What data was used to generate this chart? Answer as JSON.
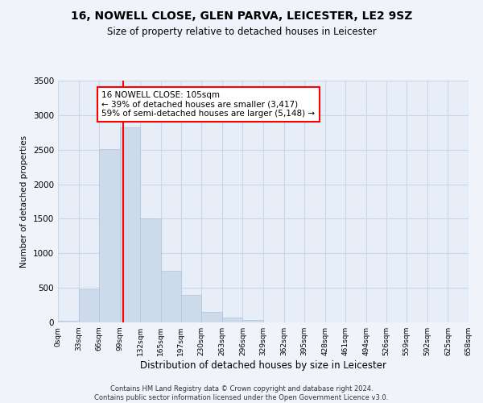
{
  "title": "16, NOWELL CLOSE, GLEN PARVA, LEICESTER, LE2 9SZ",
  "subtitle": "Size of property relative to detached houses in Leicester",
  "xlabel": "Distribution of detached houses by size in Leicester",
  "ylabel": "Number of detached properties",
  "bar_color": "#cddaea",
  "bar_edgecolor": "#b0c4de",
  "grid_color": "#c8d8e8",
  "annotation_box_edgecolor": "red",
  "vline_color": "red",
  "annotation_text": "16 NOWELL CLOSE: 105sqm\n← 39% of detached houses are smaller (3,417)\n59% of semi-detached houses are larger (5,148) →",
  "bin_edges": [
    0,
    33,
    66,
    99,
    132,
    165,
    197,
    230,
    263,
    296,
    329,
    362,
    395,
    428,
    461,
    494,
    526,
    559,
    592,
    625,
    658
  ],
  "bin_labels": [
    "0sqm",
    "33sqm",
    "66sqm",
    "99sqm",
    "132sqm",
    "165sqm",
    "197sqm",
    "230sqm",
    "263sqm",
    "296sqm",
    "329sqm",
    "362sqm",
    "395sqm",
    "428sqm",
    "461sqm",
    "494sqm",
    "526sqm",
    "559sqm",
    "592sqm",
    "625sqm",
    "658sqm"
  ],
  "bar_heights": [
    20,
    480,
    2510,
    2820,
    1510,
    750,
    395,
    150,
    65,
    30,
    5,
    0,
    0,
    0,
    0,
    0,
    0,
    0,
    0,
    0
  ],
  "ylim": [
    0,
    3500
  ],
  "yticks": [
    0,
    500,
    1000,
    1500,
    2000,
    2500,
    3000,
    3500
  ],
  "vline_x": 105,
  "footnote": "Contains HM Land Registry data © Crown copyright and database right 2024.\nContains public sector information licensed under the Open Government Licence v3.0.",
  "background_color": "#f0f4fa",
  "plot_bg_color": "#e8eef8"
}
